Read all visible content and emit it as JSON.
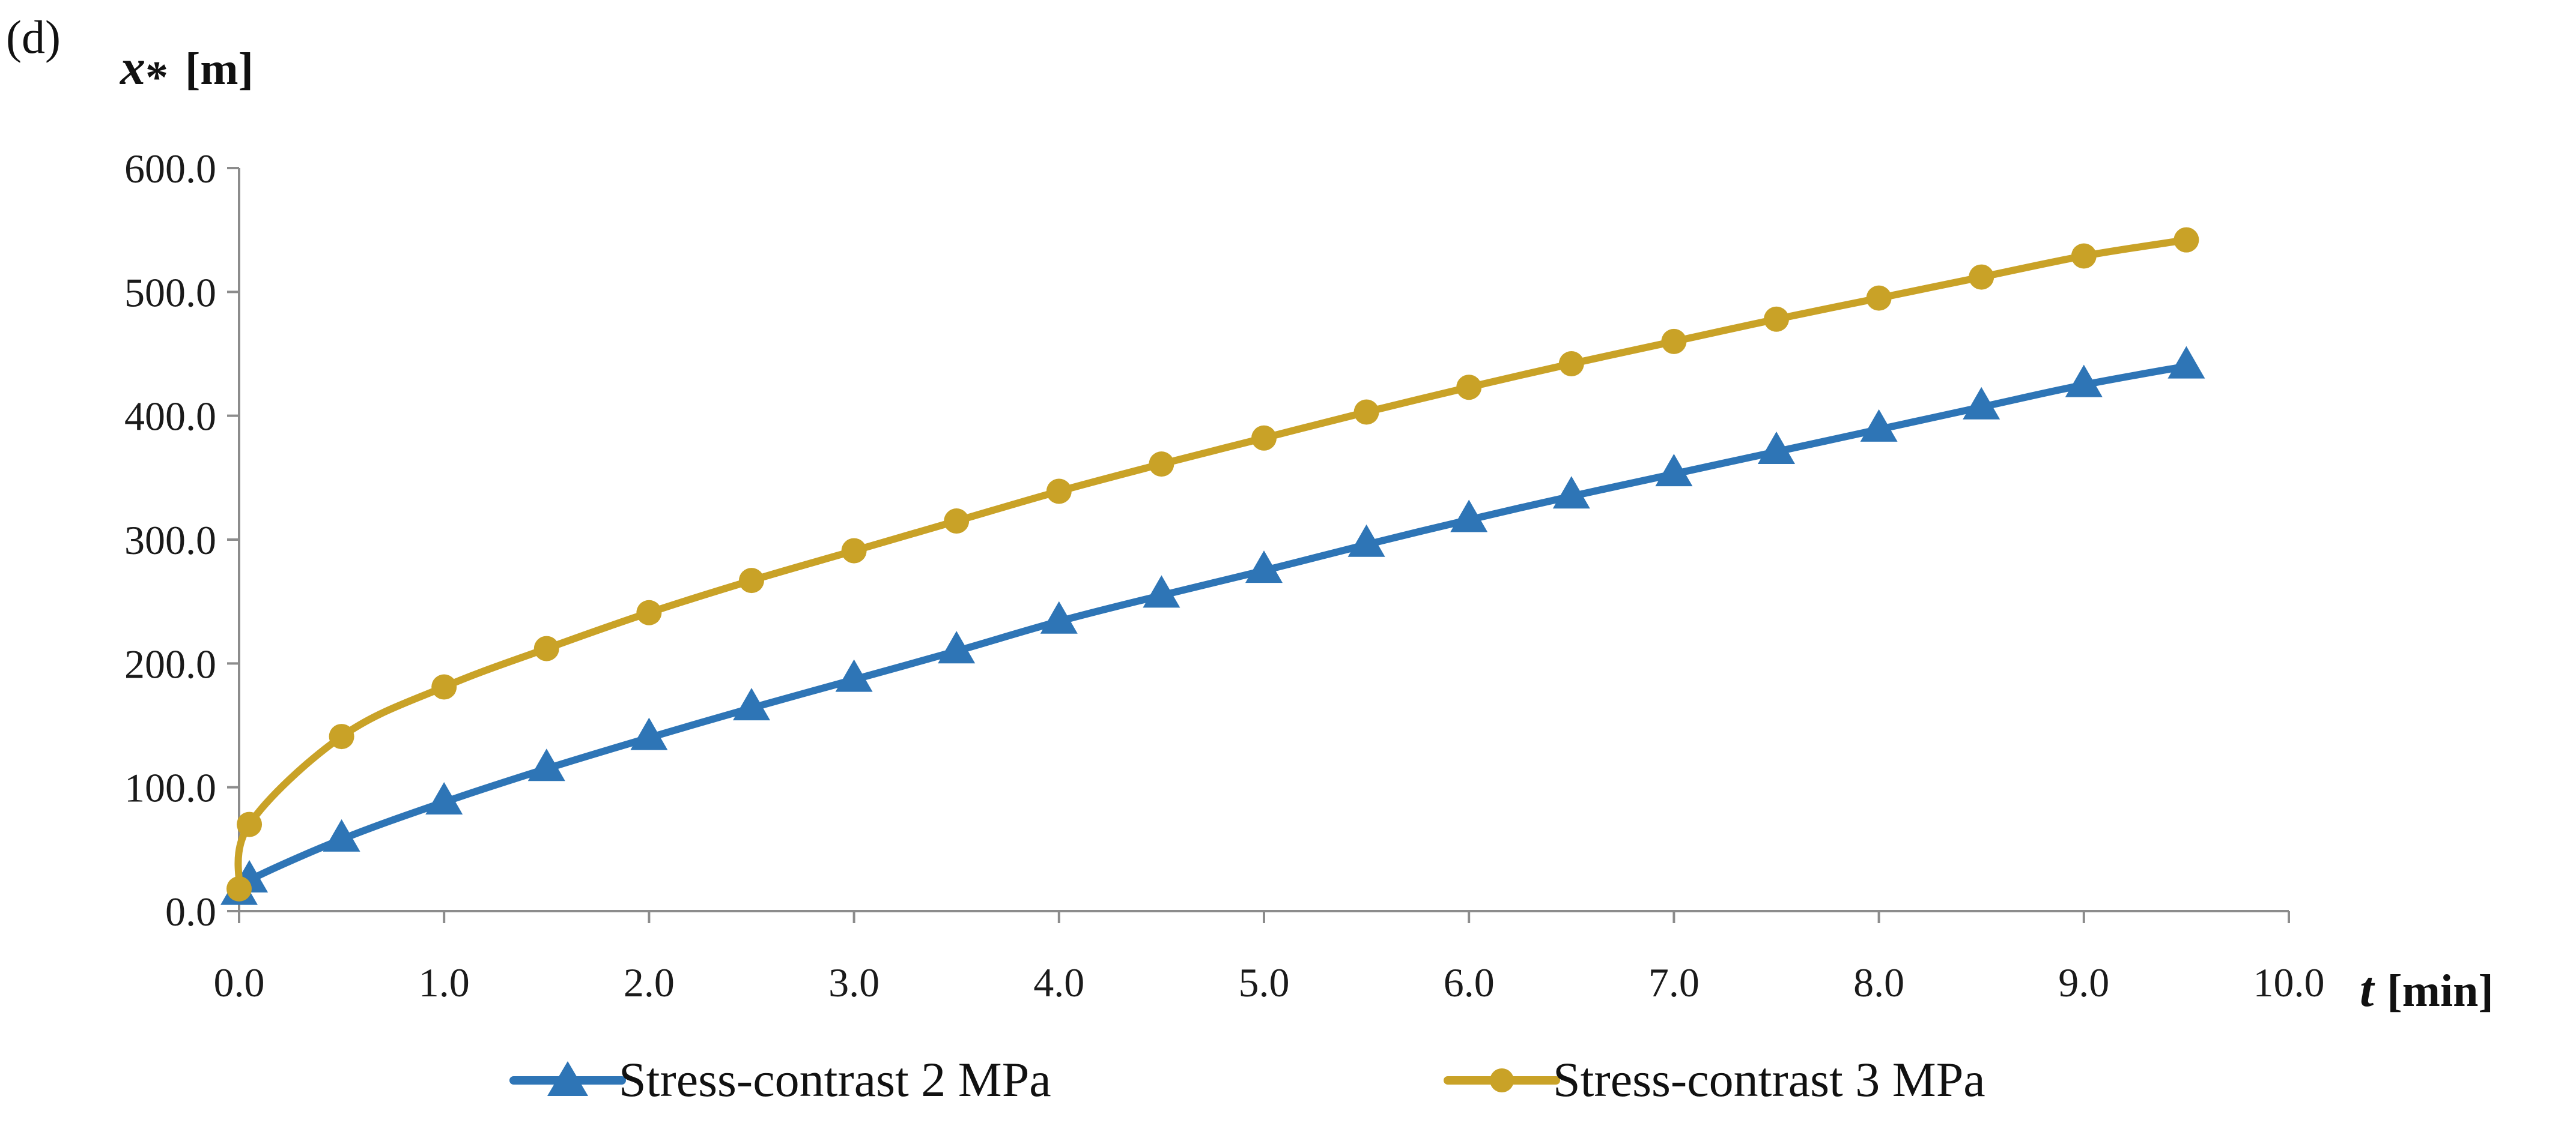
{
  "chart_data": {
    "type": "line",
    "panel_label": "(d)",
    "ylabel": {
      "symbol": "x",
      "subscript": "*",
      "unit": "[m]"
    },
    "xlabel": {
      "symbol": "t",
      "unit": "[min]"
    },
    "xlim": [
      0,
      10
    ],
    "ylim": [
      0,
      600
    ],
    "x_ticks": [
      {
        "value": 0,
        "label": "0.0"
      },
      {
        "value": 1,
        "label": "1.0"
      },
      {
        "value": 2,
        "label": "2.0"
      },
      {
        "value": 3,
        "label": "3.0"
      },
      {
        "value": 4,
        "label": "4.0"
      },
      {
        "value": 5,
        "label": "5.0"
      },
      {
        "value": 6,
        "label": "6.0"
      },
      {
        "value": 7,
        "label": "7.0"
      },
      {
        "value": 8,
        "label": "8.0"
      },
      {
        "value": 9,
        "label": "9.0"
      },
      {
        "value": 10,
        "label": "10.0"
      }
    ],
    "y_ticks": [
      {
        "value": 0,
        "label": "0.0"
      },
      {
        "value": 100,
        "label": "100.0"
      },
      {
        "value": 200,
        "label": "200.0"
      },
      {
        "value": 300,
        "label": "300.0"
      },
      {
        "value": 400,
        "label": "400.0"
      },
      {
        "value": 500,
        "label": "500.0"
      },
      {
        "value": 600,
        "label": "600.0"
      }
    ],
    "grid": false,
    "legend_position": "bottom",
    "series": [
      {
        "name": "Stress-contrast 2 MPa",
        "color": "#2E75B6",
        "marker": "triangle",
        "x": [
          0.0,
          0.05,
          0.5,
          1.0,
          1.5,
          2.0,
          2.5,
          3.0,
          3.5,
          4.0,
          4.5,
          5.0,
          5.5,
          6.0,
          6.5,
          7.0,
          7.5,
          8.0,
          8.5,
          9.0,
          9.5
        ],
        "y": [
          15,
          25,
          58,
          88,
          115,
          140,
          164,
          187,
          210,
          234,
          255,
          275,
          296,
          316,
          335,
          353,
          371,
          389,
          407,
          425,
          440
        ]
      },
      {
        "name": "Stress-contrast 3 MPa",
        "color": "#C9A227",
        "marker": "circle",
        "x": [
          0.0,
          0.05,
          0.5,
          1.0,
          1.5,
          2.0,
          2.5,
          3.0,
          3.5,
          4.0,
          4.5,
          5.0,
          5.5,
          6.0,
          6.5,
          7.0,
          7.5,
          8.0,
          8.5,
          9.0,
          9.5
        ],
        "y": [
          18,
          70,
          141,
          181,
          212,
          241,
          267,
          291,
          315,
          339,
          361,
          382,
          403,
          423,
          442,
          460,
          478,
          495,
          512,
          529,
          542
        ]
      }
    ]
  }
}
